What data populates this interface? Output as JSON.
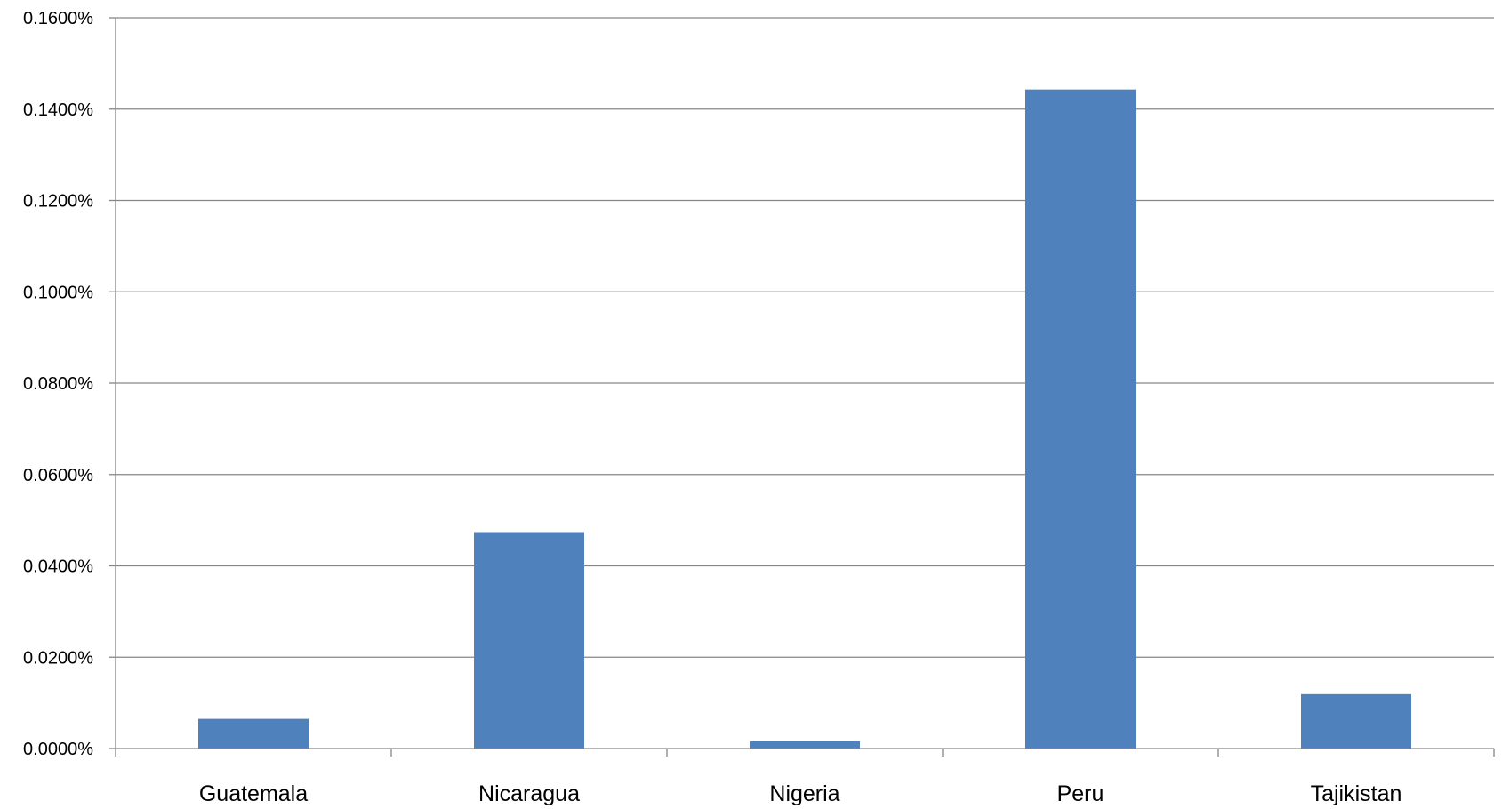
{
  "chart_data": {
    "type": "bar",
    "categories": [
      "Guatemala",
      "Nicaragua",
      "Nigeria",
      "Peru",
      "Tajikistan"
    ],
    "series": [
      {
        "values": [
          0.0065,
          0.0474,
          0.0016,
          0.1443,
          0.0119
        ]
      }
    ],
    "unit": "%",
    "ylim": [
      0,
      0.16
    ],
    "yticks": [
      0,
      0.02,
      0.04,
      0.06,
      0.08,
      0.1,
      0.12,
      0.14,
      0.16
    ],
    "ytick_labels": [
      "0.0000%",
      "0.0200%",
      "0.0400%",
      "0.0600%",
      "0.0800%",
      "0.1000%",
      "0.1200%",
      "0.1400%",
      "0.1600%"
    ],
    "grid": true,
    "legend": "none",
    "bar_color": "#4F81BD",
    "gridline_color": "#868686"
  }
}
